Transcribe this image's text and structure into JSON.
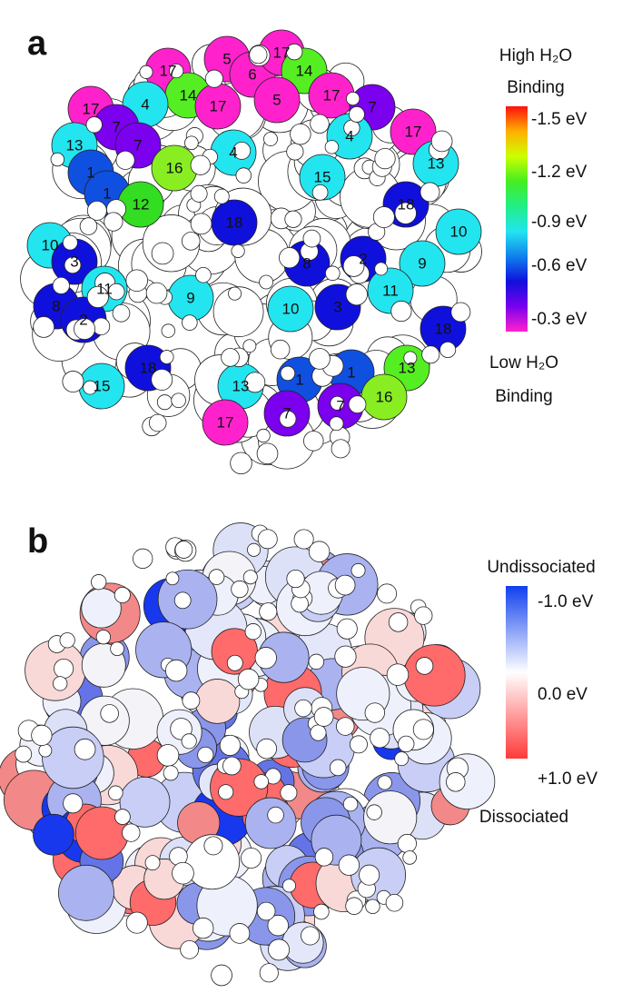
{
  "panels": [
    {
      "label": "a",
      "spheres": [
        {
          "label": "17",
          "color": "#ff22cc"
        },
        {
          "label": "5",
          "color": "#ff22cc"
        },
        {
          "label": "6",
          "color": "#ff22cc"
        },
        {
          "label": "17",
          "color": "#ff22cc"
        },
        {
          "label": "14",
          "color": "#55ee22"
        },
        {
          "label": "14",
          "color": "#55ee22"
        },
        {
          "label": "17",
          "color": "#ff22cc"
        },
        {
          "label": "5",
          "color": "#ff22cc"
        },
        {
          "label": "17",
          "color": "#ff22cc"
        },
        {
          "label": "7",
          "color": "#7a00ee"
        },
        {
          "label": "17",
          "color": "#ff22cc"
        },
        {
          "label": "4",
          "color": "#22e5f0"
        },
        {
          "label": "17",
          "color": "#ff22cc"
        },
        {
          "label": "7",
          "color": "#7a00ee"
        },
        {
          "label": "7",
          "color": "#7a00ee"
        },
        {
          "label": "13",
          "color": "#22e5f0"
        },
        {
          "label": "1",
          "color": "#1050e0"
        },
        {
          "label": "1",
          "color": "#1050e0"
        },
        {
          "label": "16",
          "color": "#88ee22"
        },
        {
          "label": "12",
          "color": "#33dd22"
        },
        {
          "label": "4",
          "color": "#22e5f0"
        },
        {
          "label": "4",
          "color": "#22e5f0"
        },
        {
          "label": "15",
          "color": "#22e5f0"
        },
        {
          "label": "13",
          "color": "#22e5f0"
        },
        {
          "label": "18",
          "color": "#1010dd"
        },
        {
          "label": "18",
          "color": "#1010dd"
        },
        {
          "label": "10",
          "color": "#22e5f0"
        },
        {
          "label": "10",
          "color": "#22e5f0"
        },
        {
          "label": "3",
          "color": "#1010dd"
        },
        {
          "label": "11",
          "color": "#22e5f0"
        },
        {
          "label": "9",
          "color": "#22e5f0"
        },
        {
          "label": "8",
          "color": "#1010dd"
        },
        {
          "label": "2",
          "color": "#1010dd"
        },
        {
          "label": "9",
          "color": "#22e5f0"
        },
        {
          "label": "11",
          "color": "#22e5f0"
        },
        {
          "label": "10",
          "color": "#22e5f0"
        },
        {
          "label": "3",
          "color": "#1010dd"
        },
        {
          "label": "8",
          "color": "#1010dd"
        },
        {
          "label": "2",
          "color": "#1010dd"
        },
        {
          "label": "18",
          "color": "#1010dd"
        },
        {
          "label": "18",
          "color": "#1010dd"
        },
        {
          "label": "15",
          "color": "#22e5f0"
        },
        {
          "label": "13",
          "color": "#22e5f0"
        },
        {
          "label": "1",
          "color": "#1050e0"
        },
        {
          "label": "1",
          "color": "#1050e0"
        },
        {
          "label": "13",
          "color": "#55ee22"
        },
        {
          "label": "16",
          "color": "#88ee22"
        },
        {
          "label": "17",
          "color": "#ff22cc"
        },
        {
          "label": "7",
          "color": "#7a00ee"
        },
        {
          "label": "7",
          "color": "#7a00ee"
        }
      ],
      "scale": {
        "colors": [
          "#ff1010",
          "#ffb000",
          "#ccff00",
          "#44ee22",
          "#22ee88",
          "#22e5f0",
          "#1080ee",
          "#1010dd",
          "#7a00ee",
          "#ff22cc"
        ],
        "top_title": "High H₂O",
        "top_subtitle": "Binding",
        "ticks": [
          "-1.5 eV",
          "-1.2 eV",
          "-0.9 eV",
          "-0.6 eV",
          "-0.3 eV"
        ],
        "bottom_title": "Low H₂O",
        "bottom_subtitle": "Binding"
      }
    },
    {
      "label": "b",
      "scale": {
        "colors": [
          "#1040ee",
          "#ffffff",
          "#ff3a3a"
        ],
        "top_title": "Undissociated",
        "ticks": [
          "-1.0 eV",
          "0.0 eV",
          "+1.0 eV"
        ],
        "bottom_title": "Dissociated"
      }
    }
  ]
}
